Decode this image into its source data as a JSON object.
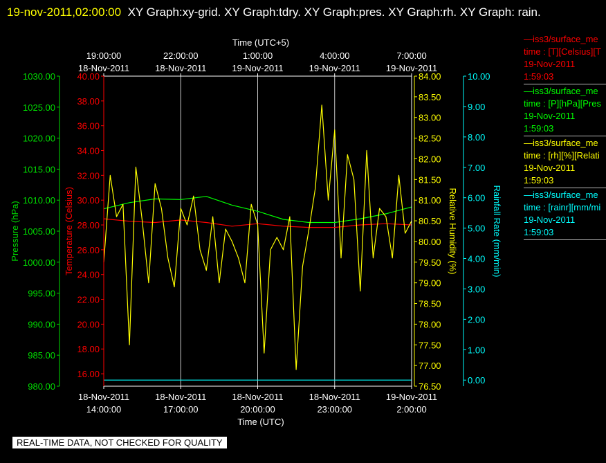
{
  "header": {
    "timestamp": "19-nov-2011,02:00:00",
    "title": "XY Graph:xy-grid.  XY Graph:tdry.  XY Graph:pres.  XY Graph:rh.  XY Graph: rain."
  },
  "banner": "REAL-TIME DATA, NOT CHECKED FOR QUALITY",
  "legend": [
    {
      "line": "—iss3/surface_me",
      "desc": "time : [T][Celsius][T",
      "date": "19-Nov-2011",
      "time": "1:59:03",
      "color": "#ff0000"
    },
    {
      "line": "—iss3/surface_me",
      "desc": "time : [P][hPa][Pres",
      "date": "19-Nov-2011",
      "time": "1:59:03",
      "color": "#00ff00"
    },
    {
      "line": "—iss3/surface_me",
      "desc": "time : [rh][%][Relati",
      "date": "19-Nov-2011",
      "time": "1:59:03",
      "color": "#ffff00"
    },
    {
      "line": "—iss3/surface_me",
      "desc": "time : [rainr][mm/mi",
      "date": "19-Nov-2011",
      "time": "1:59:03",
      "color": "#00ffff"
    }
  ],
  "chart_data": {
    "type": "line",
    "x_top_label": "Time (UTC+5)",
    "x_bottom_label": "Time (UTC)",
    "x_top_ticks": [
      {
        "time": "19:00:00",
        "date": "18-Nov-2011"
      },
      {
        "time": "22:00:00",
        "date": "18-Nov-2011"
      },
      {
        "time": "1:00:00",
        "date": "19-Nov-2011"
      },
      {
        "time": "4:00:00",
        "date": "19-Nov-2011"
      },
      {
        "time": "7:00:00",
        "date": "19-Nov-2011"
      }
    ],
    "x_bottom_ticks": [
      {
        "date": "18-Nov-2011",
        "time": "14:00:00"
      },
      {
        "date": "18-Nov-2011",
        "time": "17:00:00"
      },
      {
        "date": "18-Nov-2011",
        "time": "20:00:00"
      },
      {
        "date": "18-Nov-2011",
        "time": "23:00:00"
      },
      {
        "date": "19-Nov-2011",
        "time": "2:00:00"
      }
    ],
    "x_hours": [
      14,
      17,
      20,
      23,
      26
    ],
    "xlim_hours": [
      14,
      26
    ],
    "grid": true,
    "axes": {
      "pressure": {
        "label": "Pressure (hPa)",
        "color": "#00dd00",
        "ylim": [
          980,
          1030
        ],
        "ticks": [
          "980.00",
          "985.00",
          "990.00",
          "995.00",
          "1000.00",
          "1005.00",
          "1010.00",
          "1015.00",
          "1020.00",
          "1025.00",
          "1030.00"
        ]
      },
      "temperature": {
        "label": "Temperature (Celsius)",
        "color": "#ff0000",
        "ylim": [
          15,
          40
        ],
        "ticks": [
          "16.00",
          "18.00",
          "20.00",
          "22.00",
          "24.00",
          "26.00",
          "28.00",
          "30.00",
          "32.00",
          "34.00",
          "36.00",
          "38.00",
          "40.00"
        ]
      },
      "rh": {
        "label": "Relative Humidity (%)",
        "color": "#ffff00",
        "ylim": [
          76.5,
          84
        ],
        "ticks": [
          "76.50",
          "77.00",
          "77.50",
          "78.00",
          "78.50",
          "79.00",
          "79.50",
          "80.00",
          "80.50",
          "81.00",
          "81.50",
          "82.00",
          "82.50",
          "83.00",
          "83.50",
          "84.00"
        ]
      },
      "rain": {
        "label": "Rainfall Rate (mm/min)",
        "color": "#00ffff",
        "ylim": [
          -0.2,
          10
        ],
        "ticks": [
          "0.00",
          "1.00",
          "2.00",
          "3.00",
          "4.00",
          "5.00",
          "6.00",
          "7.00",
          "8.00",
          "9.00",
          "10.00"
        ]
      }
    },
    "series": [
      {
        "axis": "pressure",
        "color": "#00ff00",
        "x": [
          14.0,
          15.0,
          16.0,
          17.0,
          18.0,
          19.0,
          20.0,
          21.0,
          22.0,
          23.0,
          24.0,
          25.0,
          26.0
        ],
        "y": [
          1008.6,
          1009.6,
          1010.2,
          1010.1,
          1010.6,
          1009.2,
          1008.2,
          1006.9,
          1006.4,
          1006.4,
          1007.0,
          1007.8,
          1008.9
        ]
      },
      {
        "axis": "temperature",
        "color": "#ff0000",
        "x": [
          14.0,
          15.0,
          16.0,
          17.0,
          18.0,
          19.0,
          20.0,
          21.0,
          22.0,
          23.0,
          24.0,
          25.0,
          26.0
        ],
        "y": [
          28.5,
          28.3,
          28.2,
          28.4,
          28.2,
          27.9,
          28.1,
          27.9,
          27.8,
          27.8,
          28.0,
          28.1,
          28.0
        ]
      },
      {
        "axis": "rh",
        "color": "#ffff00",
        "x": [
          14.0,
          14.25,
          14.5,
          14.75,
          15.0,
          15.25,
          15.5,
          15.75,
          16.0,
          16.25,
          16.5,
          16.75,
          17.0,
          17.25,
          17.5,
          17.75,
          18.0,
          18.25,
          18.5,
          18.75,
          19.0,
          19.25,
          19.5,
          19.75,
          20.0,
          20.25,
          20.5,
          20.75,
          21.0,
          21.25,
          21.5,
          21.75,
          22.0,
          22.25,
          22.5,
          22.75,
          23.0,
          23.25,
          23.5,
          23.75,
          24.0,
          24.25,
          24.5,
          24.75,
          25.0,
          25.25,
          25.5,
          25.75,
          26.0
        ],
        "y": [
          79.5,
          81.6,
          80.6,
          80.9,
          77.5,
          81.8,
          80.5,
          79.0,
          81.4,
          80.8,
          79.6,
          78.9,
          80.8,
          80.4,
          81.1,
          79.8,
          79.3,
          80.6,
          79.0,
          80.3,
          80.0,
          79.6,
          79.0,
          80.9,
          80.4,
          77.3,
          79.8,
          80.1,
          79.8,
          80.6,
          76.9,
          79.4,
          80.3,
          81.3,
          83.3,
          81.0,
          82.7,
          79.6,
          82.1,
          81.5,
          78.8,
          82.2,
          79.6,
          80.8,
          80.6,
          79.6,
          81.6,
          80.2,
          80.5
        ]
      },
      {
        "axis": "rain",
        "color": "#00ffff",
        "x": [
          14.0,
          26.0
        ],
        "y": [
          0.0,
          0.0
        ]
      }
    ]
  }
}
